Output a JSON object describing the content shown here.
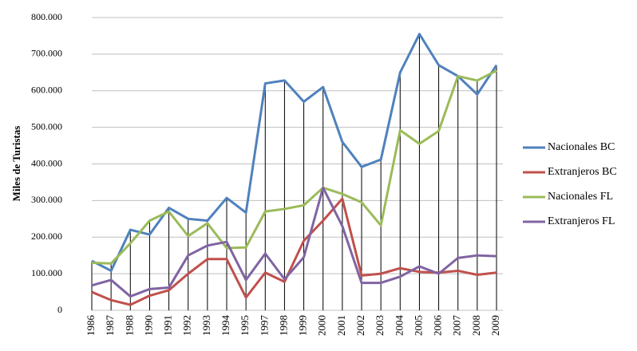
{
  "chart_data": {
    "type": "line",
    "y_label": "Miles de Turistas",
    "categories": [
      "1986",
      "1987",
      "1988",
      "1990",
      "1991",
      "1992",
      "1993",
      "1994",
      "1995",
      "1997",
      "1998",
      "1999",
      "2000",
      "2001",
      "2002",
      "2003",
      "2004",
      "2005",
      "2006",
      "2007",
      "2008",
      "2009"
    ],
    "series": [
      {
        "name": "Nacionales BC",
        "color": "#4f81bd",
        "values": [
          135000,
          108000,
          220000,
          207000,
          280000,
          250000,
          245000,
          307000,
          267000,
          620000,
          628000,
          570000,
          610000,
          460000,
          392000,
          412000,
          650000,
          755000,
          670000,
          640000,
          590000,
          670000
        ]
      },
      {
        "name": "Extranjeros BC",
        "color": "#c0504d",
        "values": [
          50000,
          28000,
          15000,
          40000,
          55000,
          100000,
          140000,
          140000,
          35000,
          103000,
          78000,
          190000,
          245000,
          305000,
          95000,
          100000,
          115000,
          105000,
          103000,
          108000,
          97000,
          103000
        ]
      },
      {
        "name": "Nacionales FL",
        "color": "#9bbb59",
        "values": [
          130000,
          128000,
          183000,
          245000,
          270000,
          203000,
          238000,
          170000,
          172000,
          270000,
          277000,
          287000,
          335000,
          318000,
          295000,
          232000,
          492000,
          455000,
          490000,
          640000,
          628000,
          655000
        ]
      },
      {
        "name": "Extranjeros FL",
        "color": "#8064a2",
        "values": [
          68000,
          83000,
          38000,
          58000,
          62000,
          150000,
          177000,
          187000,
          83000,
          155000,
          85000,
          145000,
          335000,
          230000,
          75000,
          75000,
          92000,
          120000,
          100000,
          143000,
          150000,
          148000
        ]
      }
    ],
    "ylim": [
      0,
      800000
    ],
    "yticks": [
      0,
      {
        "value": 100000,
        "label": "100.000"
      },
      {
        "value": 200000,
        "label": "200.000"
      },
      {
        "value": 300000,
        "label": "300.000"
      },
      {
        "value": 400000,
        "label": "400.000"
      },
      {
        "value": 500000,
        "label": "500.000"
      },
      {
        "value": 600000,
        "label": "600.000"
      },
      {
        "value": 700000,
        "label": "700.000"
      },
      {
        "value": 800000,
        "label": "800.000"
      }
    ],
    "grid": true,
    "legend": "right"
  }
}
